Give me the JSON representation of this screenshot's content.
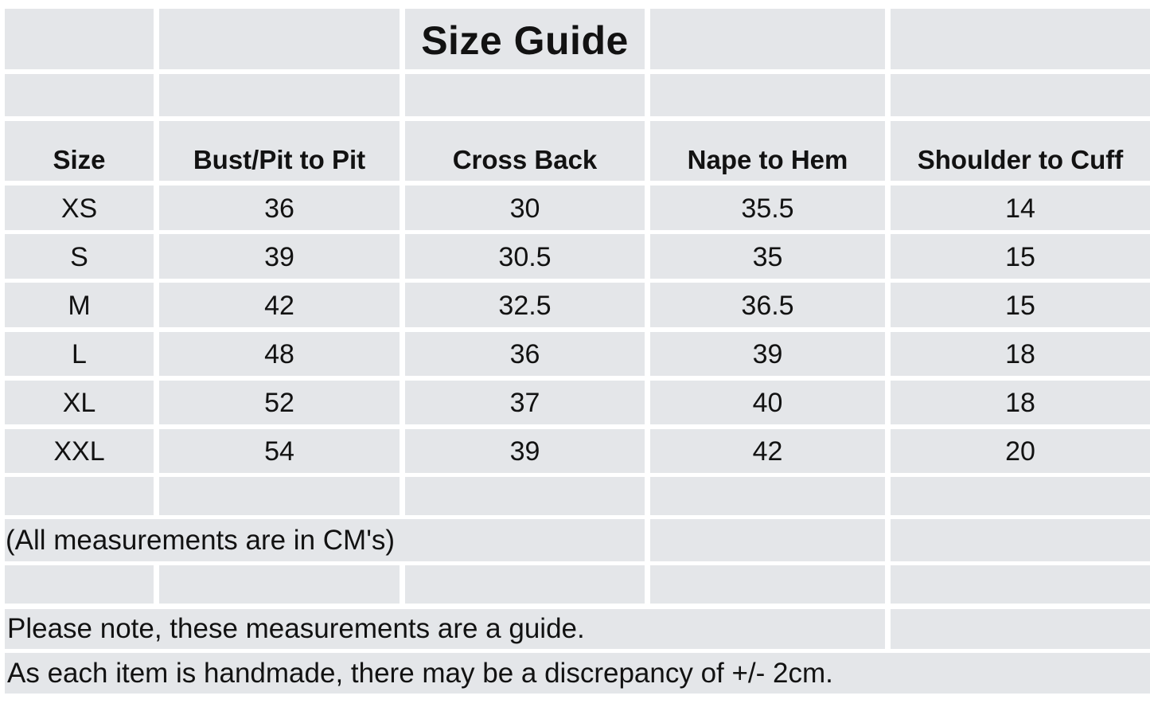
{
  "chart_data": {
    "type": "table",
    "title": "Size Guide",
    "columns": [
      "Size",
      "Bust/Pit to Pit",
      "Cross Back",
      "Nape to Hem",
      "Shoulder to Cuff"
    ],
    "rows": [
      [
        "XS",
        "36",
        "30",
        "35.5",
        "14"
      ],
      [
        "S",
        "39",
        "30.5",
        "35",
        "15"
      ],
      [
        "M",
        "42",
        "32.5",
        "36.5",
        "15"
      ],
      [
        "L",
        "48",
        "36",
        "39",
        "18"
      ],
      [
        "XL",
        "52",
        "37",
        "40",
        "18"
      ],
      [
        "XXL",
        "54",
        "39",
        "42",
        "20"
      ]
    ],
    "units_note": "(All measurements are in CM's)",
    "guide_note": "Please note, these measurements are a guide.",
    "handmade_note": "As each item is handmade, there may be a discrepancy of +/- 2cm.",
    "layout_hints": {
      "grid": "white gutters between gray cells",
      "title_position": "third column, first row"
    }
  },
  "colors": {
    "cell_fill": "#e4e6e9",
    "gridline": "#ffffff",
    "text": "#121212"
  }
}
